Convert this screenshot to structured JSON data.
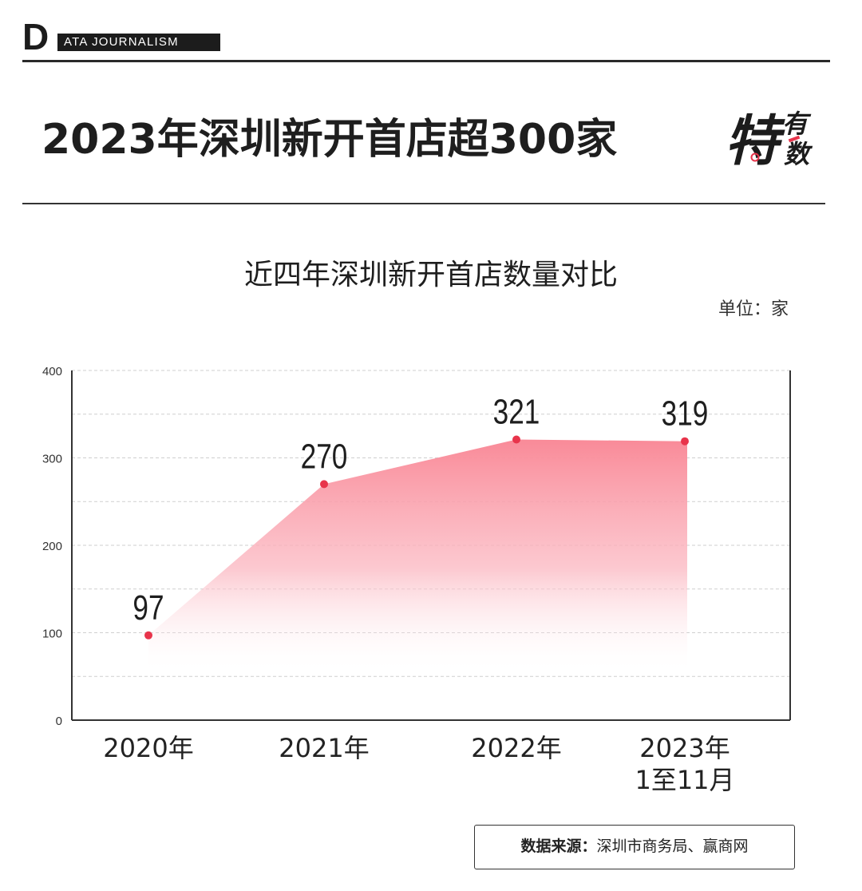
{
  "brand": {
    "letter": "D",
    "tag": "ATA JOURNALISM"
  },
  "headline": "2023年深圳新开首店超300家",
  "logo": {
    "big": "特",
    "small1": "有",
    "small2": "数"
  },
  "unit": "单位：家",
  "source": {
    "label": "数据来源：",
    "text": "深圳市商务局、赢商网"
  },
  "colors": {
    "accent": "#e8344b",
    "area_top": "#f98a98",
    "text": "#1e1e1e"
  },
  "chart_data": {
    "type": "area",
    "title": "近四年深圳新开首店数量对比",
    "xlabel": "",
    "ylabel": "",
    "unit": "单位：家",
    "ylim": [
      0,
      400
    ],
    "yticks": [
      0,
      100,
      200,
      300,
      400
    ],
    "grid": true,
    "categories": [
      [
        "2020年"
      ],
      [
        "2021年"
      ],
      [
        "2022年"
      ],
      [
        "2023年",
        "1至11月"
      ]
    ],
    "series": [
      {
        "values": [
          97,
          270,
          321,
          319
        ]
      }
    ],
    "data_labels": [
      "97",
      "270",
      "321",
      "319"
    ]
  }
}
